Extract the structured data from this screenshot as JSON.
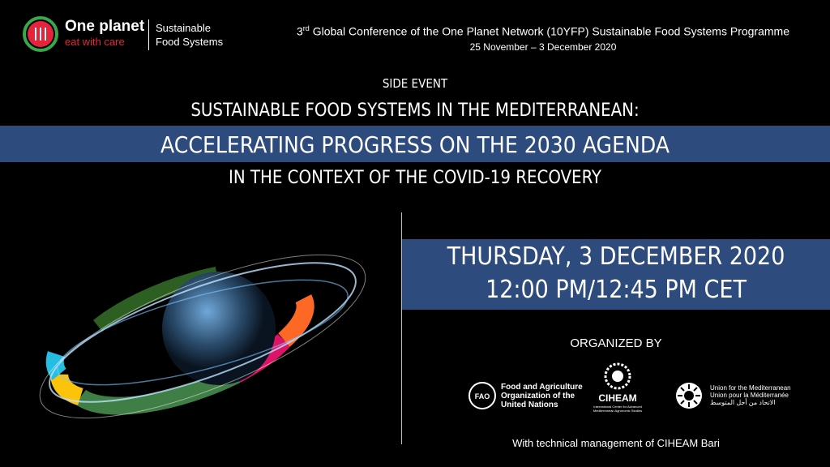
{
  "header": {
    "logo_title": "One planet",
    "logo_tagline": "eat with care",
    "programme_line1": "Sustainable",
    "programme_line2": "Food Systems",
    "conference_ordinal": "3",
    "conference_ordinal_suffix": "rd",
    "conference_title": "Global Conference of the One Planet Network (10YFP) Sustainable Food Systems Programme",
    "conference_dates": "25 November – 3 December 2020"
  },
  "event": {
    "label": "SIDE EVENT",
    "title_line1": "SUSTAINABLE FOOD SYSTEMS IN THE MEDITERRANEAN:",
    "title_line2": "ACCELERATING PROGRESS ON THE 2030 AGENDA",
    "title_line3": "IN THE CONTEXT OF THE COVID-19 RECOVERY",
    "date": "THURSDAY, 3 DECEMBER 2020",
    "time": "12:00 PM/12:45 PM CET"
  },
  "organizers": {
    "heading": "ORGANIZED BY",
    "fao_acronym": "FAO",
    "fao_line1": "Food and Agriculture",
    "fao_line2": "Organization of the",
    "fao_line3": "United Nations",
    "ciheam_name": "CIHEAM",
    "ciheam_line1": "International Center for Advanced",
    "ciheam_line2": "Mediterranean Agronomic Studies",
    "ufm_line1": "Union for the Mediterranean",
    "ufm_line2": "Union pour la Méditerranée",
    "ufm_line3": "الاتحاد من أجل المتوسط"
  },
  "footer": {
    "note": "With technical management of CIHEAM Bari"
  }
}
